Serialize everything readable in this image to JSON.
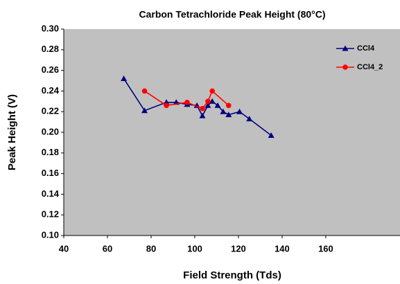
{
  "chart_data": {
    "type": "line",
    "title": "Carbon Tetrachloride Peak Height (80°C)",
    "x_label": "Field Strength (Tds)",
    "y_label": "Peak Height (V)",
    "xlim": [
      40,
      194
    ],
    "xticks": [
      40,
      60,
      80,
      100,
      120,
      140,
      160
    ],
    "ylim": [
      0.1,
      0.3
    ],
    "yticks": [
      {
        "value": 0.1,
        "label": "0.10"
      },
      {
        "value": 0.12,
        "label": "0.12"
      },
      {
        "value": 0.14,
        "label": "0.14"
      },
      {
        "value": 0.16,
        "label": "0.16"
      },
      {
        "value": 0.18,
        "label": "0.18"
      },
      {
        "value": 0.2,
        "label": "0.20"
      },
      {
        "value": 0.22,
        "label": "0.22"
      },
      {
        "value": 0.24,
        "label": "0.24"
      },
      {
        "value": 0.26,
        "label": "0.26"
      },
      {
        "value": 0.28,
        "label": "0.28"
      },
      {
        "value": 0.3,
        "label": "0.30"
      }
    ],
    "legend": "top-right",
    "series": [
      {
        "name": "CCl4",
        "color": "#000080",
        "marker": "triangle",
        "x": [
          67.5,
          77,
          87,
          91.5,
          96.5,
          101,
          103.5,
          106,
          108,
          110.5,
          113,
          115.5,
          120.5,
          125,
          135
        ],
        "values": [
          0.252,
          0.221,
          0.229,
          0.229,
          0.227,
          0.226,
          0.216,
          0.226,
          0.23,
          0.226,
          0.22,
          0.217,
          0.22,
          0.213,
          0.197
        ]
      },
      {
        "name": "CCl4_2",
        "color": "#ff0000",
        "marker": "circle",
        "x": [
          77,
          87,
          96.5,
          103.5,
          106,
          108,
          115.5
        ],
        "values": [
          0.24,
          0.226,
          0.229,
          0.223,
          0.23,
          0.24,
          0.226
        ]
      }
    ]
  }
}
